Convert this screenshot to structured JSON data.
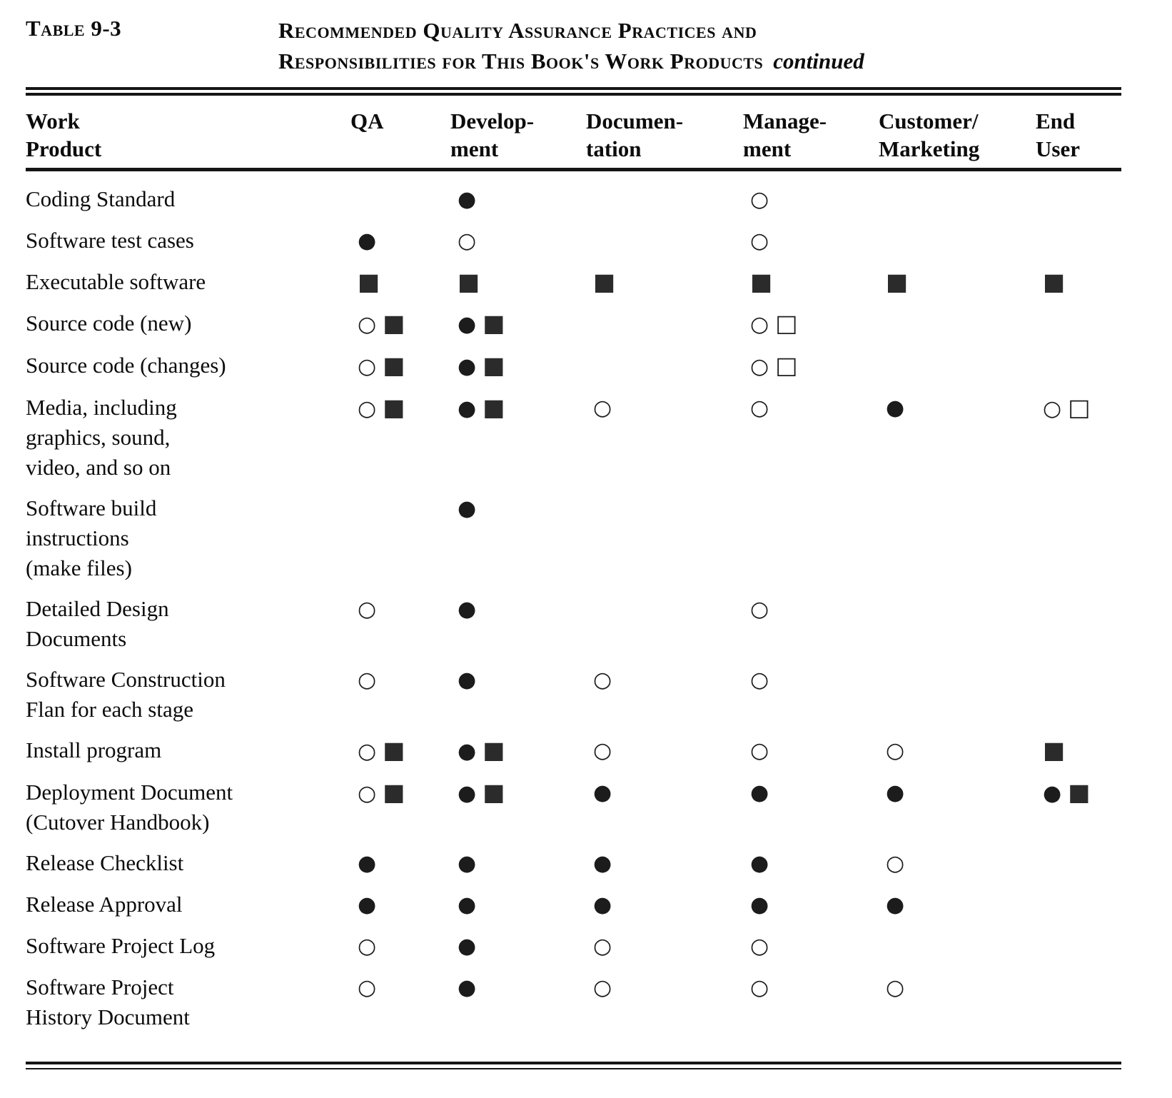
{
  "page": {
    "table_label": "Table 9-3",
    "title_line1": "Recommended Quality Assurance Practices and",
    "title_line2": "Responsibilities for This Book's Work Products",
    "title_continued": "continued"
  },
  "table": {
    "legend": {
      "filled-circle": "●",
      "open-circle": "○",
      "filled-square": "■",
      "open-square": "□"
    },
    "columns": [
      {
        "id": "work-product",
        "lines": [
          "Work",
          "Product"
        ]
      },
      {
        "id": "qa",
        "lines": [
          "QA"
        ]
      },
      {
        "id": "development",
        "lines": [
          "Develop-",
          "ment"
        ]
      },
      {
        "id": "documentation",
        "lines": [
          "Documen-",
          "tation"
        ]
      },
      {
        "id": "management",
        "lines": [
          "Manage-",
          "ment"
        ]
      },
      {
        "id": "customer-marketing",
        "lines": [
          "Customer/",
          "Marketing"
        ]
      },
      {
        "id": "end-user",
        "lines": [
          "End",
          "User"
        ]
      }
    ],
    "rows": [
      {
        "label_lines": [
          "Coding Standard"
        ],
        "cells": [
          [],
          [
            "filled-circle"
          ],
          [],
          [
            "open-circle"
          ],
          [],
          []
        ]
      },
      {
        "label_lines": [
          "Software test cases"
        ],
        "cells": [
          [
            "filled-circle"
          ],
          [
            "open-circle"
          ],
          [],
          [
            "open-circle"
          ],
          [],
          []
        ]
      },
      {
        "label_lines": [
          "Executable software"
        ],
        "cells": [
          [
            "filled-square"
          ],
          [
            "filled-square"
          ],
          [
            "filled-square"
          ],
          [
            "filled-square"
          ],
          [
            "filled-square"
          ],
          [
            "filled-square"
          ]
        ]
      },
      {
        "label_lines": [
          "Source code (new)"
        ],
        "cells": [
          [
            "open-circle",
            "filled-square"
          ],
          [
            "filled-circle",
            "filled-square"
          ],
          [],
          [
            "open-circle",
            "open-square"
          ],
          [],
          []
        ]
      },
      {
        "label_lines": [
          "Source code (changes)"
        ],
        "cells": [
          [
            "open-circle",
            "filled-square"
          ],
          [
            "filled-circle",
            "filled-square"
          ],
          [],
          [
            "open-circle",
            "open-square"
          ],
          [],
          []
        ]
      },
      {
        "label_lines": [
          "Media, including",
          "graphics, sound,",
          "video, and so on"
        ],
        "cells": [
          [
            "open-circle",
            "filled-square"
          ],
          [
            "filled-circle",
            "filled-square"
          ],
          [
            "open-circle"
          ],
          [
            "open-circle"
          ],
          [
            "filled-circle"
          ],
          [
            "open-circle",
            "open-square"
          ]
        ]
      },
      {
        "label_lines": [
          "Software build",
          "instructions",
          "(make files)"
        ],
        "cells": [
          [],
          [
            "filled-circle"
          ],
          [],
          [],
          [],
          []
        ]
      },
      {
        "label_lines": [
          "Detailed Design",
          "Documents"
        ],
        "cells": [
          [
            "open-circle"
          ],
          [
            "filled-circle"
          ],
          [],
          [
            "open-circle"
          ],
          [],
          []
        ]
      },
      {
        "label_lines": [
          "Software  Construction",
          "Flan for each stage"
        ],
        "cells": [
          [
            "open-circle"
          ],
          [
            "filled-circle"
          ],
          [
            "open-circle"
          ],
          [
            "open-circle"
          ],
          [],
          []
        ]
      },
      {
        "label_lines": [
          "Install program"
        ],
        "cells": [
          [
            "open-circle",
            "filled-square"
          ],
          [
            "filled-circle",
            "filled-square"
          ],
          [
            "open-circle"
          ],
          [
            "open-circle"
          ],
          [
            "open-circle"
          ],
          [
            "filled-square"
          ]
        ]
      },
      {
        "label_lines": [
          "Deployment Document",
          "(Cutover  Handbook)"
        ],
        "cells": [
          [
            "open-circle",
            "filled-square"
          ],
          [
            "filled-circle",
            "filled-square"
          ],
          [
            "filled-circle"
          ],
          [
            "filled-circle"
          ],
          [
            "filled-circle"
          ],
          [
            "filled-circle",
            "filled-square"
          ]
        ]
      },
      {
        "label_lines": [
          "Release  Checklist"
        ],
        "cells": [
          [
            "filled-circle"
          ],
          [
            "filled-circle"
          ],
          [
            "filled-circle"
          ],
          [
            "filled-circle"
          ],
          [
            "open-circle"
          ],
          []
        ]
      },
      {
        "label_lines": [
          "Release  Approval"
        ],
        "cells": [
          [
            "filled-circle"
          ],
          [
            "filled-circle"
          ],
          [
            "filled-circle"
          ],
          [
            "filled-circle"
          ],
          [
            "filled-circle"
          ],
          []
        ]
      },
      {
        "label_lines": [
          "Software Project Log"
        ],
        "cells": [
          [
            "open-circle"
          ],
          [
            "filled-circle"
          ],
          [
            "open-circle"
          ],
          [
            "open-circle"
          ],
          [],
          []
        ]
      },
      {
        "label_lines": [
          "Software Project",
          "History Document"
        ],
        "cells": [
          [
            "open-circle"
          ],
          [
            "filled-circle"
          ],
          [
            "open-circle"
          ],
          [
            "open-circle"
          ],
          [
            "open-circle"
          ],
          []
        ]
      }
    ]
  }
}
